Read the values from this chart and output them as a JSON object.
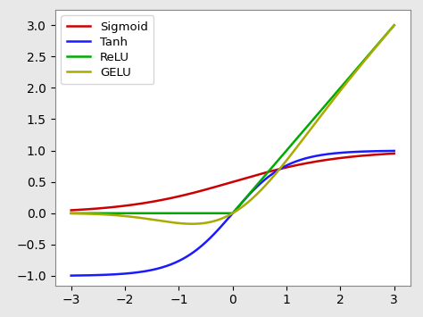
{
  "title": "",
  "xlim": [
    -3.3,
    3.3
  ],
  "ylim": [
    -1.15,
    3.25
  ],
  "xticks": [
    -3,
    -2,
    -1,
    0,
    1,
    2,
    3
  ],
  "yticks": [
    -1.0,
    -0.5,
    0.0,
    0.5,
    1.0,
    1.5,
    2.0,
    2.5,
    3.0
  ],
  "x_start": -3.0,
  "x_end": 3.0,
  "n_points": 500,
  "sigmoid_color": "#cc0000",
  "tanh_color": "#1a1aff",
  "relu_color": "#00aa00",
  "gelu_color": "#aaaa00",
  "line_width": 1.8,
  "legend_labels": [
    "Sigmoid",
    "Tanh",
    "ReLU",
    "GELU"
  ],
  "background_color": "#ffffff",
  "outer_bg": "#e8e8e8",
  "figsize": [
    4.74,
    3.55
  ],
  "dpi": 100,
  "legend_fontsize": 9.5,
  "tick_fontsize": 10
}
